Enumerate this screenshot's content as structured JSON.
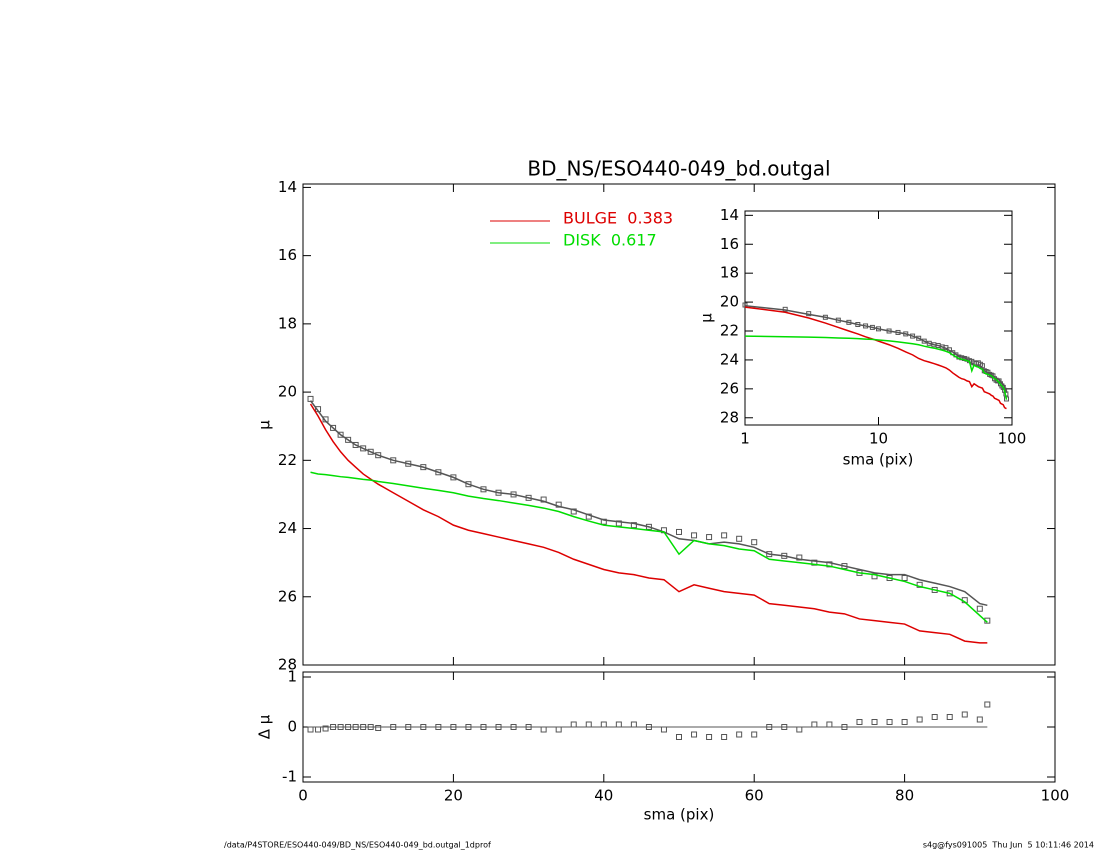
{
  "chart_data": {
    "type": "line",
    "title": "BD_NS/ESO440-049_bd.outgal",
    "xlabel": "sma (pix)",
    "ylabel": "μ",
    "xlim": [
      0,
      100
    ],
    "xticks": [
      0,
      20,
      40,
      60,
      80,
      100
    ],
    "ylim": [
      13.9,
      28.0
    ],
    "yticks": [
      14,
      16,
      18,
      20,
      22,
      24,
      26,
      28
    ],
    "y_inverted": true,
    "x": [
      1,
      2,
      3,
      4,
      5,
      6,
      7,
      8,
      9,
      10,
      12,
      14,
      16,
      18,
      20,
      22,
      24,
      26,
      28,
      30,
      32,
      34,
      36,
      38,
      40,
      42,
      44,
      46,
      48,
      50,
      52,
      54,
      56,
      58,
      60,
      62,
      64,
      66,
      68,
      70,
      72,
      74,
      76,
      78,
      80,
      82,
      84,
      86,
      88,
      90,
      91
    ],
    "series": [
      {
        "style": "squares",
        "color": "#555555",
        "values": [
          20.2,
          20.5,
          20.8,
          21.05,
          21.25,
          21.4,
          21.55,
          21.65,
          21.75,
          21.85,
          22.0,
          22.1,
          22.2,
          22.35,
          22.5,
          22.7,
          22.85,
          22.95,
          23.0,
          23.1,
          23.15,
          23.3,
          23.5,
          23.65,
          23.8,
          23.85,
          23.9,
          23.95,
          24.05,
          24.1,
          24.2,
          24.25,
          24.2,
          24.3,
          24.4,
          24.75,
          24.8,
          24.85,
          25.0,
          25.05,
          25.1,
          25.3,
          25.4,
          25.45,
          25.45,
          25.65,
          25.8,
          25.9,
          26.1,
          26.35,
          26.7
        ]
      },
      {
        "style": "line",
        "color": "#555555",
        "values": [
          20.25,
          20.55,
          20.85,
          21.05,
          21.25,
          21.4,
          21.55,
          21.65,
          21.75,
          21.85,
          22.0,
          22.1,
          22.2,
          22.35,
          22.5,
          22.7,
          22.85,
          22.95,
          23.0,
          23.1,
          23.2,
          23.35,
          23.45,
          23.6,
          23.75,
          23.8,
          23.85,
          23.95,
          24.1,
          24.3,
          24.35,
          24.45,
          24.4,
          24.45,
          24.55,
          24.75,
          24.8,
          24.9,
          24.95,
          25.0,
          25.1,
          25.2,
          25.3,
          25.35,
          25.35,
          25.5,
          25.6,
          25.7,
          25.85,
          26.2,
          26.25
        ]
      },
      {
        "style": "line",
        "name": "BULGE  0.383",
        "color": "#dd0000",
        "values": [
          20.35,
          20.7,
          21.1,
          21.45,
          21.75,
          22.0,
          22.2,
          22.4,
          22.55,
          22.7,
          22.95,
          23.2,
          23.45,
          23.65,
          23.9,
          24.05,
          24.15,
          24.25,
          24.35,
          24.45,
          24.55,
          24.7,
          24.9,
          25.05,
          25.2,
          25.3,
          25.35,
          25.45,
          25.5,
          25.85,
          25.65,
          25.75,
          25.85,
          25.9,
          25.95,
          26.2,
          26.25,
          26.3,
          26.35,
          26.45,
          26.5,
          26.65,
          26.7,
          26.75,
          26.8,
          27.0,
          27.05,
          27.1,
          27.3,
          27.35,
          27.35
        ]
      },
      {
        "style": "line",
        "name": "DISK  0.617",
        "color": "#00dd00",
        "values": [
          22.35,
          22.4,
          22.42,
          22.45,
          22.48,
          22.5,
          22.53,
          22.56,
          22.58,
          22.62,
          22.68,
          22.75,
          22.82,
          22.88,
          22.95,
          23.05,
          23.12,
          23.18,
          23.25,
          23.32,
          23.4,
          23.5,
          23.65,
          23.78,
          23.9,
          23.95,
          24.0,
          24.05,
          24.1,
          24.75,
          24.35,
          24.45,
          24.5,
          24.6,
          24.65,
          24.9,
          24.95,
          25.0,
          25.05,
          25.1,
          25.2,
          25.3,
          25.35,
          25.45,
          25.55,
          25.7,
          25.8,
          25.9,
          26.15,
          26.55,
          26.75
        ]
      }
    ],
    "residual": {
      "ylabel": "Δ μ",
      "ylim": [
        -1.1,
        1.1
      ],
      "yticks": [
        -1,
        0,
        1
      ],
      "color": "#555555",
      "values": [
        -0.05,
        -0.05,
        -0.03,
        0,
        0,
        0,
        0,
        0,
        0,
        -0.02,
        0,
        0,
        0,
        0,
        0,
        0,
        0,
        0,
        0,
        0,
        -0.05,
        -0.05,
        0.05,
        0.05,
        0.05,
        0.05,
        0.05,
        0,
        -0.05,
        -0.2,
        -0.15,
        -0.2,
        -0.2,
        -0.15,
        -0.15,
        0,
        0,
        -0.05,
        0.05,
        0.05,
        0,
        0.1,
        0.1,
        0.1,
        0.1,
        0.15,
        0.2,
        0.2,
        0.25,
        0.15,
        0.45
      ]
    },
    "inset": {
      "xlabel": "sma (pix)",
      "ylabel": "μ",
      "log_x": true,
      "xlim": [
        1,
        100
      ],
      "xticks": [
        1,
        10,
        100
      ],
      "ylim": [
        13.7,
        28.5
      ],
      "yticks": [
        14,
        16,
        18,
        20,
        22,
        24,
        26,
        28
      ]
    },
    "footer_left": "/data/P4STORE/ESO440-049/BD_NS/ESO440-049_bd.outgal_1dprof",
    "footer_right": "s4g@fys091005  Thu Jun  5 10:11:46 2014"
  }
}
